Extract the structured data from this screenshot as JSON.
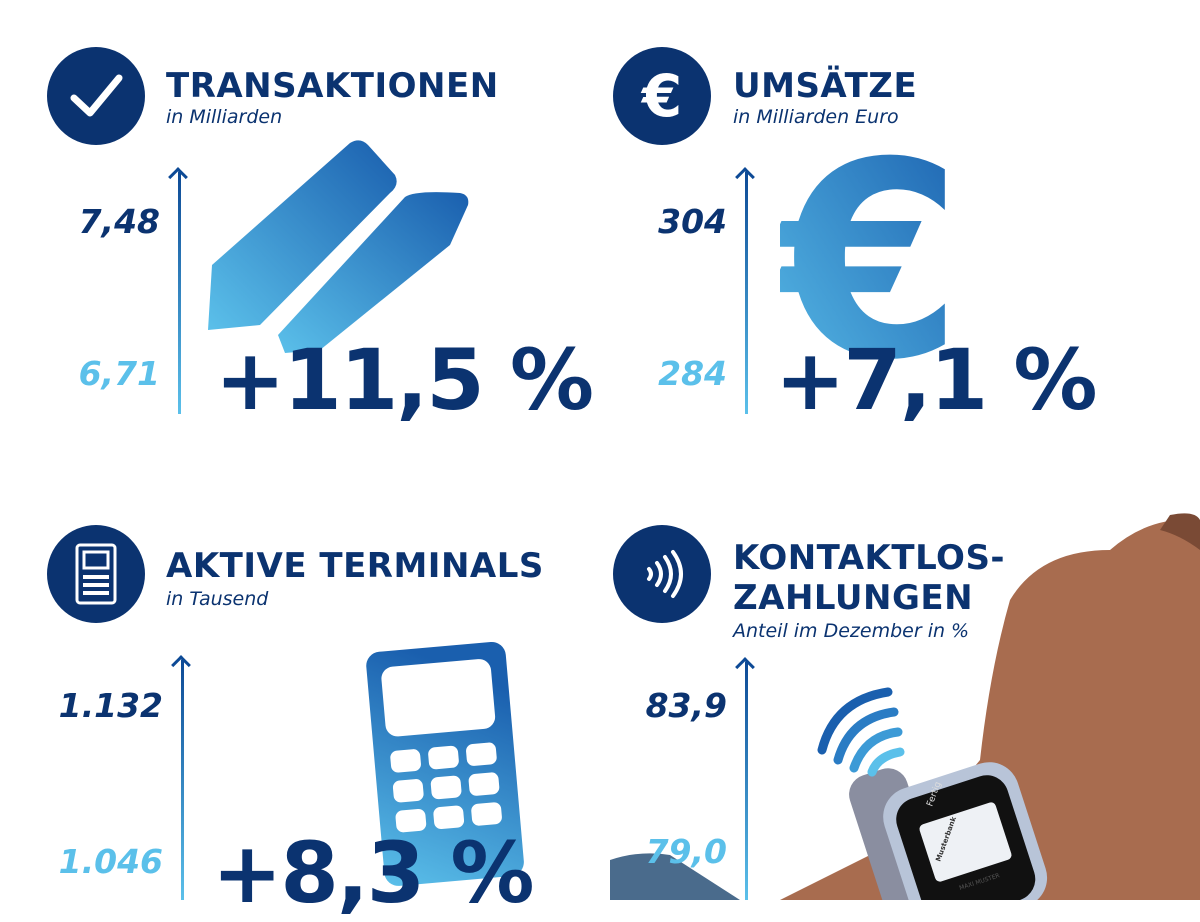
{
  "colors": {
    "navy": "#0b3370",
    "light_blue": "#5bc0ea",
    "mid_blue": "#1f6fb8"
  },
  "panels": [
    {
      "icon": "checkmark-icon",
      "title": "TRANSAKTIONEN",
      "subtitle": "in Milliarden",
      "value_current": "7,48",
      "value_previous": "6,71",
      "change": "+11,5 %"
    },
    {
      "icon": "euro-icon",
      "title": "UMSÄTZE",
      "subtitle": "in Milliarden Euro",
      "value_current": "304",
      "value_previous": "284",
      "change": "+7,1 %"
    },
    {
      "icon": "terminal-icon",
      "title": "AKTIVE TERMINALS",
      "subtitle": "in Tausend",
      "value_current": "1.132",
      "value_previous": "1.046",
      "change": "+8,3 %"
    },
    {
      "icon": "contactless-icon",
      "title_line1": "KONTAKTLOS-",
      "title_line2": "ZAHLUNGEN",
      "subtitle": "Anteil im Dezember in %",
      "value_current": "83,9",
      "value_previous": "79,0"
    }
  ],
  "watch": {
    "screen_label": "Fertig",
    "bank": "Musterbank",
    "card_holder": "MAXI MUSTER"
  }
}
